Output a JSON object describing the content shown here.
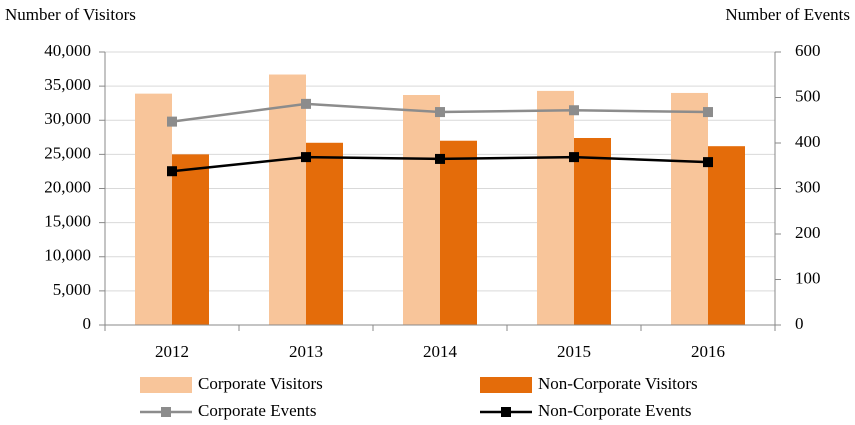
{
  "chart_data": {
    "type": "bar",
    "y_label": "Number of Visitors",
    "y2_label": "Number of Events",
    "categories": [
      "2012",
      "2013",
      "2014",
      "2015",
      "2016"
    ],
    "series": [
      {
        "name": "Corporate Visitors",
        "type": "bar",
        "color": "#f8c59a",
        "values": [
          33900,
          36700,
          33700,
          34300,
          34000
        ]
      },
      {
        "name": "Non-Corporate Visitors",
        "type": "bar",
        "color": "#e46c0a",
        "values": [
          25000,
          26700,
          27000,
          27400,
          26200
        ]
      },
      {
        "name": "Corporate Events",
        "type": "line",
        "axis": "y2",
        "color": "#8c8c8c",
        "values": [
          447,
          486,
          468,
          472,
          468
        ]
      },
      {
        "name": "Non-Corporate Events",
        "type": "line",
        "axis": "y2",
        "color": "#000000",
        "values": [
          338,
          369,
          365,
          369,
          358
        ]
      }
    ],
    "ylim": [
      0,
      40000
    ],
    "yticks": [
      0,
      {
        "value": 5000,
        "label": "5,000"
      },
      {
        "value": 10000,
        "label": "10,000"
      },
      {
        "value": 15000,
        "label": "15,000"
      },
      {
        "value": 20000,
        "label": "20,000"
      },
      {
        "value": 25000,
        "label": "25,000"
      },
      {
        "value": 30000,
        "label": "30,000"
      },
      {
        "value": 35000,
        "label": "35,000"
      },
      {
        "value": 40000,
        "label": "40,000"
      }
    ],
    "y2lim": [
      0,
      600
    ],
    "y2ticks": [
      0,
      100,
      200,
      300,
      400,
      500,
      600
    ],
    "grid": true
  }
}
